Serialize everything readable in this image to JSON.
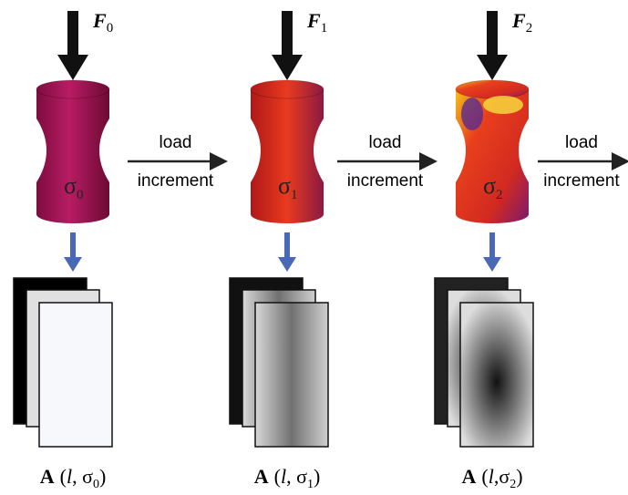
{
  "stages": [
    {
      "force": {
        "symbol": "F",
        "subscript": "0"
      },
      "stress": {
        "symbol": "σ",
        "subscript": "0"
      },
      "result": {
        "main": "A",
        "open": "(",
        "var": "l",
        "sep": ", σ",
        "subscript": "0",
        "close": ")"
      }
    },
    {
      "force": {
        "symbol": "F",
        "subscript": "1"
      },
      "stress": {
        "symbol": "σ",
        "subscript": "1"
      },
      "result": {
        "main": "A",
        "open": "(",
        "var": "l",
        "sep": ", σ",
        "subscript": "1",
        "close": ")"
      }
    },
    {
      "force": {
        "symbol": "F",
        "subscript": "2"
      },
      "stress": {
        "symbol": "σ",
        "subscript": "2"
      },
      "result": {
        "main": "A",
        "open": "(",
        "var": "l",
        "sep": ",σ",
        "subscript": "2",
        "close": ")"
      }
    }
  ],
  "steps": [
    {
      "line1": "load",
      "line2": "increment"
    },
    {
      "line1": "load",
      "line2": "increment"
    },
    {
      "line1": "load",
      "line2": "increment"
    }
  ]
}
